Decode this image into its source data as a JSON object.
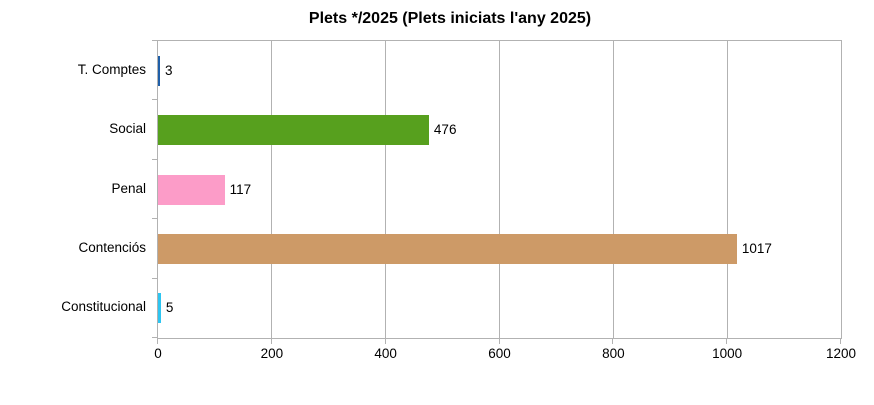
{
  "chart_data": {
    "type": "bar",
    "orientation": "horizontal",
    "title": "Plets */2025 (Plets iniciats l'any 2025)",
    "categories": [
      "T. Comptes",
      "Social",
      "Penal",
      "Contenciós",
      "Constitucional"
    ],
    "values": [
      3,
      476,
      117,
      1017,
      5
    ],
    "data_labels": [
      "3",
      "476",
      "117",
      "1017",
      "5"
    ],
    "bar_colors": [
      "#1F5FA8",
      "#57A01E",
      "#FC9CC8",
      "#CD9A67",
      "#2DC5F1"
    ],
    "xlim": [
      0,
      1200
    ],
    "xticks": [
      "0",
      "200",
      "400",
      "600",
      "800",
      "1000",
      "1200"
    ],
    "xtick_values": [
      0,
      200,
      400,
      600,
      800,
      1000,
      1200
    ],
    "grid": "vertical",
    "legend": "none",
    "frame_color": "#B2B2B2",
    "text_color": "#000000",
    "background_color": "#FFFFFF"
  }
}
